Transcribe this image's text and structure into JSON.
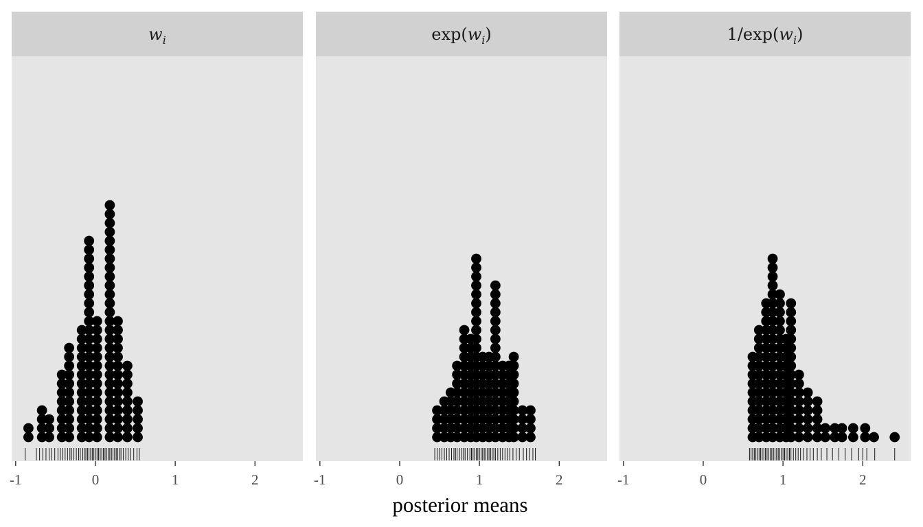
{
  "chart_data": {
    "type": "dotplot",
    "xlabel": "posterior means",
    "ylabel": "",
    "xlim": [
      -1.05,
      2.6
    ],
    "x_ticks": [
      -1,
      0,
      1,
      2
    ],
    "x_tick_labels": [
      "-1",
      "0",
      "1",
      "2"
    ],
    "grid": false,
    "colors": {
      "panel_bg": "#e5e5e5",
      "strip_bg": "#d1d1d1",
      "dot": "#000000",
      "rug": "#000000",
      "tick_text": "#4d4d4d"
    },
    "panels": [
      {
        "title_tex": "w_i",
        "title": "w",
        "title_sub": "i",
        "title_prefix": "",
        "title_suffix": "",
        "bin_width": 0.087,
        "bins": [
          {
            "x": -0.84,
            "count": 2
          },
          {
            "x": -0.67,
            "count": 4
          },
          {
            "x": -0.58,
            "count": 3
          },
          {
            "x": -0.42,
            "count": 8
          },
          {
            "x": -0.33,
            "count": 11
          },
          {
            "x": -0.17,
            "count": 13
          },
          {
            "x": -0.08,
            "count": 23
          },
          {
            "x": 0.02,
            "count": 14
          },
          {
            "x": 0.18,
            "count": 27
          },
          {
            "x": 0.28,
            "count": 14
          },
          {
            "x": 0.4,
            "count": 9
          },
          {
            "x": 0.53,
            "count": 5
          }
        ],
        "rug": [
          -0.88,
          -0.74,
          -0.7,
          -0.66,
          -0.62,
          -0.58,
          -0.55,
          -0.51,
          -0.47,
          -0.44,
          -0.41,
          -0.38,
          -0.35,
          -0.32,
          -0.3,
          -0.27,
          -0.24,
          -0.21,
          -0.19,
          -0.16,
          -0.14,
          -0.12,
          -0.1,
          -0.08,
          -0.06,
          -0.04,
          -0.02,
          0.0,
          0.02,
          0.04,
          0.06,
          0.08,
          0.1,
          0.12,
          0.14,
          0.16,
          0.18,
          0.2,
          0.22,
          0.24,
          0.26,
          0.28,
          0.3,
          0.32,
          0.35,
          0.38,
          0.41,
          0.44,
          0.48,
          0.52,
          0.55
        ]
      },
      {
        "title_tex": "exp(w_i)",
        "title": "w",
        "title_sub": "i",
        "title_prefix": "exp(",
        "title_suffix": ")",
        "bin_width": 0.087,
        "bins": [
          {
            "x": 0.47,
            "count": 4
          },
          {
            "x": 0.56,
            "count": 5
          },
          {
            "x": 0.64,
            "count": 6
          },
          {
            "x": 0.72,
            "count": 9
          },
          {
            "x": 0.81,
            "count": 13
          },
          {
            "x": 0.89,
            "count": 12
          },
          {
            "x": 0.96,
            "count": 21
          },
          {
            "x": 1.04,
            "count": 10
          },
          {
            "x": 1.12,
            "count": 10
          },
          {
            "x": 1.2,
            "count": 18
          },
          {
            "x": 1.29,
            "count": 9
          },
          {
            "x": 1.37,
            "count": 9
          },
          {
            "x": 1.43,
            "count": 10
          },
          {
            "x": 1.54,
            "count": 4
          },
          {
            "x": 1.64,
            "count": 4
          }
        ],
        "rug": [
          0.44,
          0.47,
          0.5,
          0.53,
          0.56,
          0.59,
          0.62,
          0.65,
          0.68,
          0.7,
          0.72,
          0.75,
          0.78,
          0.8,
          0.82,
          0.85,
          0.88,
          0.9,
          0.92,
          0.94,
          0.96,
          0.98,
          1.0,
          1.02,
          1.04,
          1.06,
          1.08,
          1.1,
          1.12,
          1.14,
          1.16,
          1.18,
          1.2,
          1.23,
          1.26,
          1.29,
          1.32,
          1.35,
          1.38,
          1.42,
          1.46,
          1.5,
          1.55,
          1.59,
          1.63,
          1.67,
          1.7
        ]
      },
      {
        "title_tex": "1/exp(w_i)",
        "title": "w",
        "title_sub": "i",
        "title_prefix": "1/exp(",
        "title_suffix": ")",
        "bin_width": 0.087,
        "bins": [
          {
            "x": 0.62,
            "count": 10
          },
          {
            "x": 0.7,
            "count": 13
          },
          {
            "x": 0.79,
            "count": 16
          },
          {
            "x": 0.87,
            "count": 21
          },
          {
            "x": 0.96,
            "count": 17
          },
          {
            "x": 1.04,
            "count": 12
          },
          {
            "x": 1.1,
            "count": 16
          },
          {
            "x": 1.2,
            "count": 8
          },
          {
            "x": 1.31,
            "count": 6
          },
          {
            "x": 1.43,
            "count": 5
          },
          {
            "x": 1.53,
            "count": 2
          },
          {
            "x": 1.65,
            "count": 2
          },
          {
            "x": 1.74,
            "count": 2
          },
          {
            "x": 1.88,
            "count": 2
          },
          {
            "x": 2.03,
            "count": 2
          },
          {
            "x": 2.14,
            "count": 1
          },
          {
            "x": 2.4,
            "count": 1
          }
        ],
        "rug": [
          0.58,
          0.6,
          0.62,
          0.64,
          0.66,
          0.68,
          0.7,
          0.72,
          0.74,
          0.76,
          0.78,
          0.8,
          0.82,
          0.84,
          0.86,
          0.88,
          0.9,
          0.92,
          0.94,
          0.96,
          0.98,
          1.0,
          1.02,
          1.04,
          1.06,
          1.08,
          1.1,
          1.13,
          1.16,
          1.19,
          1.22,
          1.26,
          1.3,
          1.34,
          1.38,
          1.43,
          1.48,
          1.55,
          1.62,
          1.7,
          1.78,
          1.86,
          1.95,
          2.0,
          2.05,
          2.15,
          2.4
        ]
      }
    ]
  }
}
